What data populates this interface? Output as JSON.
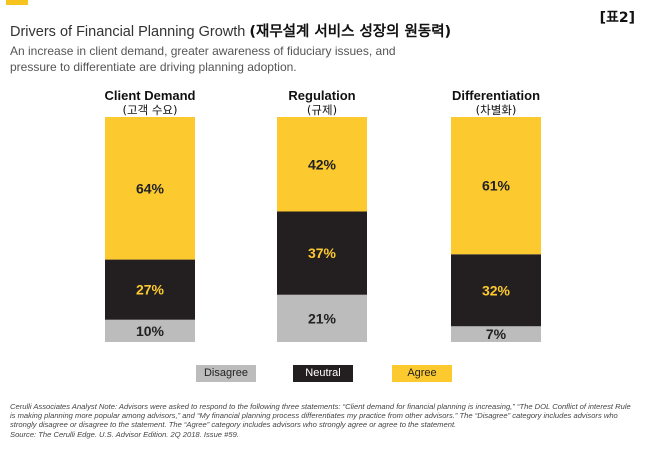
{
  "tag": "[표2]",
  "title": {
    "main": "Drivers of Financial Planning Growth",
    "korean": "(재무설계 서비스 성장의 원동력)"
  },
  "subtitle": "An increase in client demand, greater awareness of fiduciary issues, and pressure to differentiate are driving planning adoption.",
  "colors": {
    "accent": "#f7c41f",
    "agree": "#fcca2e",
    "neutral": "#231f20",
    "disagree": "#bdbcbc"
  },
  "chart_data": {
    "type": "bar",
    "stacked": true,
    "ylim": [
      0,
      100
    ],
    "grid": false,
    "legend_position": "bottom",
    "categories": [
      {
        "label": "Client Demand",
        "sublabel": "(고객 수요)"
      },
      {
        "label": "Regulation",
        "sublabel": "(규제)"
      },
      {
        "label": "Differentiation",
        "sublabel": "(차별화)"
      }
    ],
    "series": [
      {
        "name": "Disagree",
        "values": [
          10,
          21,
          7
        ]
      },
      {
        "name": "Neutral",
        "values": [
          27,
          37,
          32
        ]
      },
      {
        "name": "Agree",
        "values": [
          64,
          42,
          61
        ]
      }
    ]
  },
  "footnote": "Cerulli Associates Analyst Note: Advisors were asked to respond to the following three statements: “Client demand for financial planning is increasing,” “The DOL Conflict of interest Rule is making planning more popular among advisors,” and “My financial planning process differentiates my practice from other advisors.” The “Disagree” category includes advisors who strongly disagree or disagree to the statement. The “Agree” category includes advisors who strongly agree or agree to the statement.",
  "source": "Source: The Cerulli Edge. U.S. Advisor Edition. 2Q 2018.  Issue #59."
}
